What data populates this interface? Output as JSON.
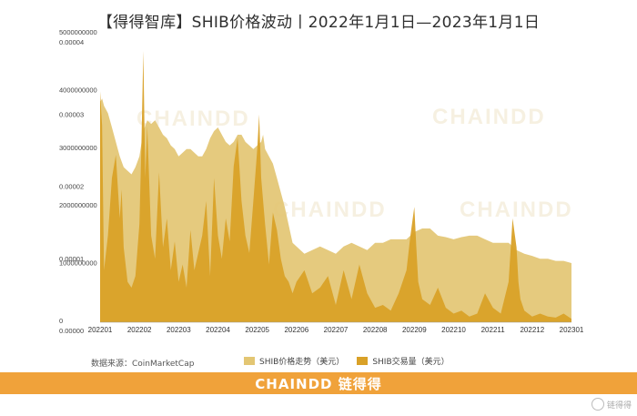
{
  "title": "【得得智库】SHIB价格波动丨2022年1月1日—2023年1月1日",
  "source": "数据来源：CoinMarketCap",
  "footer_brand": "CHAINDD 链得得",
  "watermarks": [
    "CHAINDD",
    "链得得"
  ],
  "corner_mark": "链得得",
  "colors": {
    "price": "#e3c673",
    "volume": "#d9a128",
    "footer": "#f0a23a",
    "watermark": "#c9a84e"
  },
  "chart_data": {
    "type": "area",
    "legend": [
      {
        "name": "SHIB价格走势（美元）",
        "color": "#e3c673"
      },
      {
        "name": "SHIB交易量（美元）",
        "color": "#d9a128"
      }
    ],
    "legend_position": "bottom",
    "y_left_ticks": [
      "5000000000",
      "4000000000",
      "3000000000",
      "2000000000",
      "1000000000",
      "0"
    ],
    "y_left_range": [
      0,
      5000000000
    ],
    "y_right_ticks": [
      "0.00004",
      "0.00003",
      "0.00002",
      "0.00001",
      "0.00000"
    ],
    "y_right_range": [
      0,
      4e-05
    ],
    "x_ticks": [
      "202201",
      "202202",
      "202203",
      "202204",
      "202205",
      "202206",
      "202207",
      "202208",
      "202209",
      "202210",
      "202211",
      "202212",
      "202301"
    ],
    "x_range": [
      0,
      12
    ],
    "price_series": {
      "name": "SHIB价格走势（美元）",
      "x": [
        0,
        0.05,
        0.1,
        0.2,
        0.3,
        0.4,
        0.5,
        0.6,
        0.7,
        0.8,
        0.9,
        1.0,
        1.1,
        1.2,
        1.3,
        1.4,
        1.5,
        1.6,
        1.7,
        1.8,
        1.9,
        2.0,
        2.1,
        2.2,
        2.3,
        2.4,
        2.5,
        2.6,
        2.7,
        2.8,
        2.9,
        3.0,
        3.1,
        3.2,
        3.3,
        3.4,
        3.5,
        3.6,
        3.7,
        3.8,
        3.9,
        4.0,
        4.1,
        4.15,
        4.2,
        4.3,
        4.4,
        4.5,
        4.6,
        4.7,
        4.8,
        4.9,
        5.0,
        5.2,
        5.4,
        5.6,
        5.8,
        6.0,
        6.2,
        6.4,
        6.6,
        6.8,
        7.0,
        7.2,
        7.4,
        7.6,
        7.8,
        8.0,
        8.2,
        8.4,
        8.6,
        8.8,
        9.0,
        9.2,
        9.4,
        9.6,
        9.8,
        10.0,
        10.2,
        10.4,
        10.6,
        10.8,
        11.0,
        11.2,
        11.4,
        11.6,
        11.8,
        12.0
      ],
      "values": [
        3.05e-05,
        3.1e-05,
        3e-05,
        2.9e-05,
        2.7e-05,
        2.5e-05,
        2.3e-05,
        2.15e-05,
        2.1e-05,
        2.05e-05,
        2.15e-05,
        2.3e-05,
        2.65e-05,
        2.8e-05,
        2.75e-05,
        2.8e-05,
        2.7e-05,
        2.6e-05,
        2.55e-05,
        2.45e-05,
        2.4e-05,
        2.3e-05,
        2.35e-05,
        2.4e-05,
        2.4e-05,
        2.35e-05,
        2.3e-05,
        2.3e-05,
        2.4e-05,
        2.55e-05,
        2.65e-05,
        2.7e-05,
        2.6e-05,
        2.5e-05,
        2.45e-05,
        2.5e-05,
        2.6e-05,
        2.6e-05,
        2.5e-05,
        2.45e-05,
        2.4e-05,
        2.45e-05,
        2.5e-05,
        2.6e-05,
        2.4e-05,
        2.3e-05,
        2.2e-05,
        2e-05,
        1.8e-05,
        1.6e-05,
        1.35e-05,
        1.1e-05,
        1.05e-05,
        9.5e-06,
        1e-05,
        1.05e-05,
        1e-05,
        9.5e-06,
        1.05e-05,
        1.1e-05,
        1.05e-05,
        1e-05,
        1.1e-05,
        1.1e-05,
        1.15e-05,
        1.15e-05,
        1.15e-05,
        1.25e-05,
        1.3e-05,
        1.3e-05,
        1.2e-05,
        1.18e-05,
        1.15e-05,
        1.18e-05,
        1.2e-05,
        1.2e-05,
        1.15e-05,
        1.1e-05,
        1.1e-05,
        1.1e-05,
        1e-05,
        9.5e-06,
        9.2e-06,
        8.8e-06,
        8.8e-06,
        8.5e-06,
        8.5e-06,
        8.2e-06
      ]
    },
    "volume_series": {
      "name": "SHIB交易量（美元）",
      "x": [
        0,
        0.05,
        0.1,
        0.2,
        0.3,
        0.4,
        0.5,
        0.55,
        0.6,
        0.7,
        0.8,
        0.9,
        1.0,
        1.05,
        1.1,
        1.15,
        1.2,
        1.3,
        1.4,
        1.5,
        1.6,
        1.7,
        1.8,
        1.9,
        2.0,
        2.1,
        2.2,
        2.3,
        2.4,
        2.5,
        2.6,
        2.7,
        2.8,
        2.9,
        3.0,
        3.1,
        3.2,
        3.3,
        3.4,
        3.5,
        3.6,
        3.7,
        3.8,
        3.9,
        4.0,
        4.05,
        4.1,
        4.2,
        4.3,
        4.4,
        4.5,
        4.6,
        4.7,
        4.8,
        4.9,
        5.0,
        5.2,
        5.4,
        5.6,
        5.8,
        6.0,
        6.2,
        6.4,
        6.6,
        6.8,
        7.0,
        7.2,
        7.4,
        7.6,
        7.8,
        7.9,
        8.0,
        8.05,
        8.1,
        8.2,
        8.4,
        8.6,
        8.8,
        9.0,
        9.2,
        9.4,
        9.6,
        9.8,
        10.0,
        10.2,
        10.4,
        10.5,
        10.6,
        10.65,
        10.7,
        10.8,
        11.0,
        11.2,
        11.4,
        11.6,
        11.8,
        12.0
      ],
      "values": [
        4000000000,
        3400000000,
        900000000,
        1500000000,
        2500000000,
        2900000000,
        1800000000,
        2300000000,
        1300000000,
        700000000,
        600000000,
        800000000,
        1700000000,
        3000000000,
        4700000000,
        2500000000,
        3400000000,
        1500000000,
        1100000000,
        2600000000,
        1300000000,
        1800000000,
        900000000,
        1400000000,
        700000000,
        1000000000,
        600000000,
        1600000000,
        900000000,
        1200000000,
        1500000000,
        2100000000,
        800000000,
        2500000000,
        1500000000,
        1100000000,
        1800000000,
        1400000000,
        2700000000,
        3200000000,
        2100000000,
        1500000000,
        1200000000,
        2100000000,
        3000000000,
        3600000000,
        2500000000,
        1700000000,
        1000000000,
        1900000000,
        1600000000,
        1100000000,
        800000000,
        700000000,
        500000000,
        700000000,
        900000000,
        500000000,
        600000000,
        800000000,
        300000000,
        900000000,
        400000000,
        1000000000,
        500000000,
        250000000,
        300000000,
        200000000,
        500000000,
        900000000,
        1500000000,
        2000000000,
        1300000000,
        700000000,
        400000000,
        300000000,
        600000000,
        250000000,
        150000000,
        200000000,
        100000000,
        150000000,
        500000000,
        250000000,
        150000000,
        700000000,
        1800000000,
        1300000000,
        700000000,
        400000000,
        200000000,
        100000000,
        150000000,
        100000000,
        80000000,
        150000000,
        60000000
      ]
    }
  }
}
